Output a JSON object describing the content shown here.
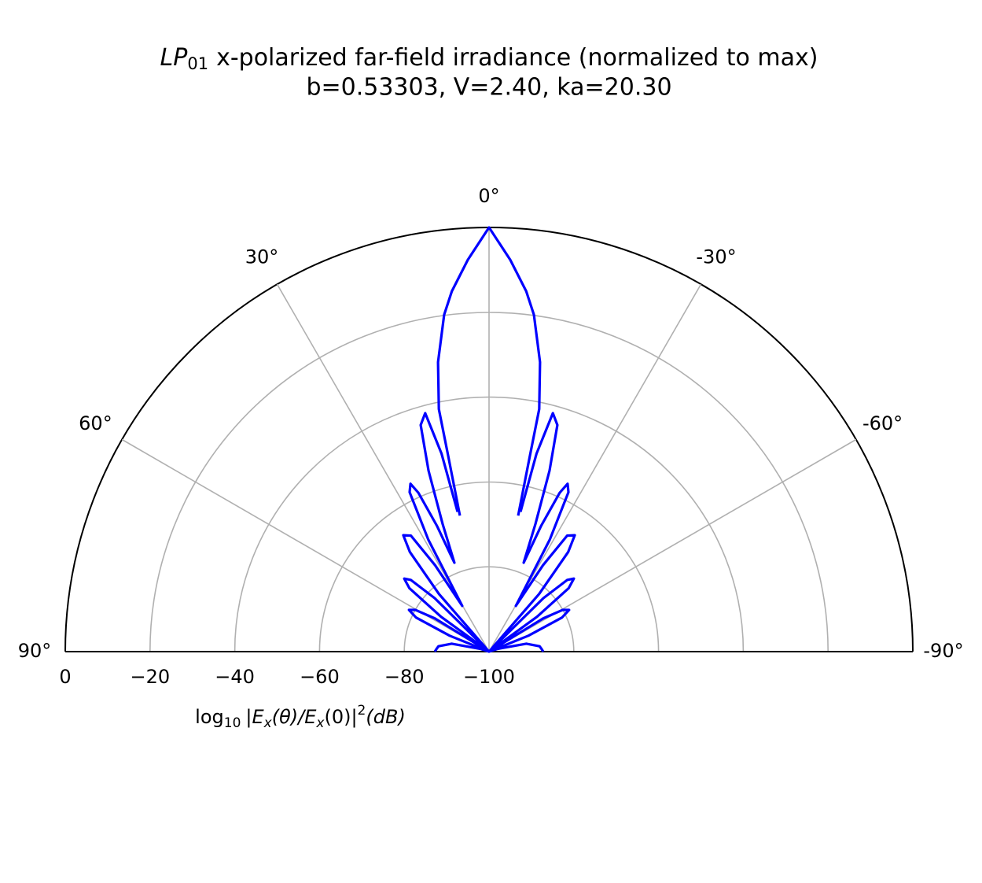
{
  "chart_data": {
    "type": "polar",
    "title_symbol": "LP",
    "title_subscript": "01",
    "title_text": "x-polarized far-field irradiance (normalized to max)",
    "subtitle": "b=0.53303, V=2.40, ka=20.30",
    "radial_label": [
      "log",
      "10",
      "|E",
      "x",
      "(θ)/E",
      "x",
      "(0)|",
      "2",
      "(dB)"
    ],
    "x": [
      -90,
      -87,
      -84,
      -78,
      -72,
      -70,
      -68,
      -65,
      -62.5,
      -60.5,
      -58.5,
      -56,
      -54,
      -51.5,
      -49.3,
      -47.5,
      -45.5,
      -43,
      -41,
      -38.5,
      -36.4,
      -34,
      -32,
      -30.4,
      -28.5,
      -26.5,
      -25.1,
      -24,
      -22.5,
      -21.3,
      -20,
      -18.5,
      -16.8,
      -15,
      -13.5,
      -12.7,
      -12.4,
      -12.1,
      -11.8,
      -11.7,
      -10,
      -7.6,
      -5.9,
      -3.1,
      0,
      3.1,
      5.9,
      7.6,
      10,
      11.7,
      11.8,
      12.1,
      12.4,
      12.7,
      13.5,
      15,
      16.8,
      18.5,
      20,
      21.3,
      22.5,
      24,
      25.1,
      26.5,
      28.5,
      30.4,
      32,
      34,
      36.4,
      38.5,
      41,
      43,
      45.5,
      47.5,
      49.3,
      51.5,
      54,
      56,
      58.5,
      60.5,
      62.5,
      65,
      68,
      70,
      72,
      78,
      84,
      87,
      90
    ],
    "series": [
      {
        "color": "#0000ff",
        "values": [
          -87.2,
          -87.6,
          -88,
          -91,
          -98,
          -100,
          -90,
          -81,
          -78.7,
          -80,
          -85,
          -100,
          -86,
          -76,
          -73.6,
          -75,
          -82,
          -100,
          -82,
          -70,
          -65.9,
          -67,
          -76,
          -87.5,
          -70,
          -58,
          -56.3,
          -59,
          -68,
          -77.5,
          -68,
          -55,
          -44.2,
          -41.8,
          -52,
          -66.2,
          null,
          -67.2,
          -53,
          -41.6,
          -30.7,
          -19.9,
          -14.6,
          -7.5,
          0,
          -7.5,
          -14.6,
          -19.9,
          -30.7,
          -41.6,
          -53,
          -67.2,
          null,
          -66.2,
          -52,
          -41.8,
          -44.2,
          -55,
          -68,
          -77.5,
          -68,
          -59,
          -56.3,
          -58,
          -70,
          -87.5,
          -76,
          -67,
          -65.9,
          -70,
          -82,
          -100,
          -82,
          -75,
          -73.6,
          -76,
          -86,
          -100,
          -85,
          -80,
          -78.7,
          -81,
          -90,
          -100,
          -98,
          -91,
          -88,
          -87.6,
          -87.2
        ]
      }
    ],
    "xlim": [
      -90,
      90
    ],
    "xticks": [
      {
        "value": 90,
        "label": "90°"
      },
      {
        "value": 60,
        "label": "60°"
      },
      {
        "value": 30,
        "label": "30°"
      },
      {
        "value": 0,
        "label": "0°"
      },
      {
        "value": -30,
        "label": "-30°"
      },
      {
        "value": -60,
        "label": "-60°"
      },
      {
        "value": -90,
        "label": "-90°"
      }
    ],
    "ylim": [
      -100,
      0
    ],
    "yticks": [
      0,
      {
        "value": -20,
        "label": "−20"
      },
      {
        "value": -40,
        "label": "−40"
      },
      {
        "value": -60,
        "label": "−60"
      },
      {
        "value": -80,
        "label": "−80"
      },
      {
        "value": -100,
        "label": "−100"
      }
    ],
    "grid": true
  }
}
